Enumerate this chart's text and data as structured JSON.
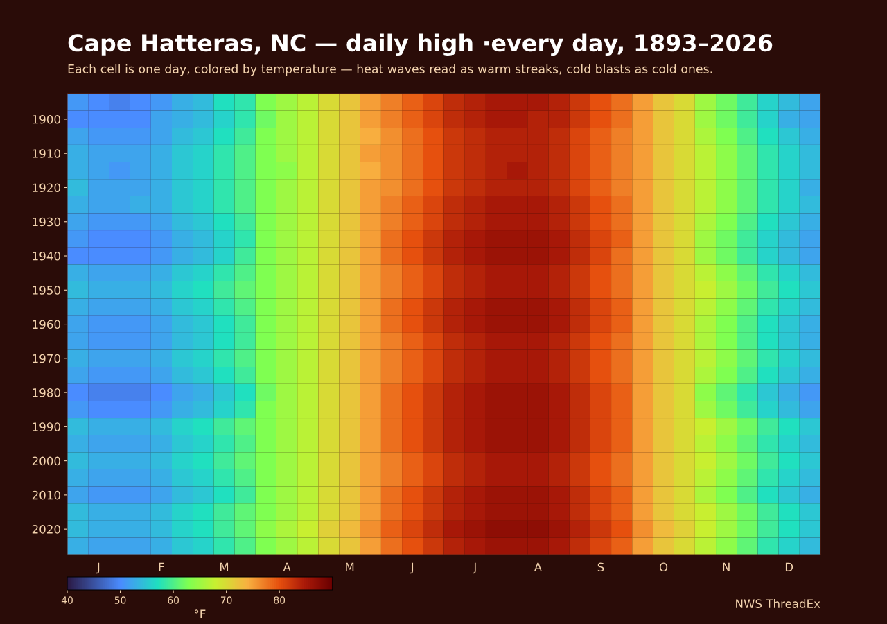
{
  "chart_data": {
    "type": "heatmap",
    "title": "Cape Hatteras, NC — daily high ·every day, 1893–2026",
    "subtitle": "Each cell is one day, colored by temperature — heat waves read as warm streaks, cold blasts as cold ones.",
    "categories": [
      null,
      "J",
      null,
      null,
      "F",
      null,
      null,
      "M",
      null,
      null,
      "A",
      null,
      null,
      "M",
      null,
      null,
      "J",
      null,
      null,
      "J",
      null,
      null,
      "A",
      null,
      null,
      "S",
      null,
      null,
      "O",
      null,
      null,
      "N",
      null,
      null,
      "D",
      null
    ],
    "y_categories": [
      null,
      "1900",
      null,
      "1910",
      null,
      "1920",
      null,
      "1930",
      null,
      "1940",
      null,
      "1950",
      null,
      "1960",
      null,
      "1970",
      null,
      "1980",
      null,
      "1990",
      null,
      "2000",
      null,
      "2010",
      null,
      "2020",
      null
    ],
    "cells": [
      [
        51,
        50,
        49,
        50,
        51,
        53,
        54,
        57,
        58,
        63,
        65,
        67,
        70,
        72,
        75,
        77,
        79,
        81,
        83,
        84,
        85,
        85,
        85,
        84,
        82,
        80,
        78,
        75,
        72,
        70,
        65,
        62,
        59,
        56,
        54,
        52
      ],
      [
        50,
        50,
        50,
        50,
        52,
        53,
        54,
        56,
        58,
        62,
        65,
        67,
        70,
        72,
        75,
        77,
        79,
        81,
        83,
        84,
        85,
        85,
        84,
        84,
        82,
        80,
        78,
        75,
        72,
        70,
        65,
        62,
        59,
        56,
        53,
        52
      ],
      [
        52,
        51,
        51,
        51,
        52,
        54,
        55,
        57,
        59,
        63,
        65,
        67,
        70,
        72,
        74,
        76,
        78,
        80,
        82,
        83,
        84,
        84,
        84,
        83,
        81,
        79,
        77,
        75,
        72,
        70,
        66,
        63,
        60,
        57,
        55,
        53
      ],
      [
        53,
        52,
        52,
        52,
        53,
        55,
        56,
        58,
        60,
        63,
        65,
        67,
        70,
        72,
        75,
        76,
        78,
        80,
        82,
        83,
        84,
        84,
        84,
        83,
        81,
        79,
        77,
        75,
        72,
        70,
        67,
        64,
        61,
        58,
        56,
        54
      ],
      [
        53,
        52,
        51,
        52,
        53,
        55,
        56,
        58,
        60,
        63,
        64,
        67,
        70,
        72,
        74,
        76,
        78,
        80,
        82,
        83,
        84,
        85,
        84,
        83,
        81,
        79,
        77,
        75,
        72,
        70,
        67,
        64,
        61,
        58,
        56,
        54
      ],
      [
        54,
        52,
        52,
        52,
        53,
        55,
        56,
        58,
        60,
        63,
        65,
        67,
        70,
        72,
        75,
        76,
        78,
        80,
        82,
        83,
        84,
        84,
        84,
        83,
        81,
        79,
        77,
        75,
        72,
        70,
        67,
        64,
        61,
        58,
        56,
        53
      ],
      [
        53,
        52,
        52,
        53,
        53,
        55,
        56,
        58,
        60,
        63,
        65,
        67,
        70,
        72,
        75,
        77,
        79,
        81,
        83,
        84,
        85,
        85,
        85,
        84,
        82,
        80,
        78,
        75,
        72,
        70,
        67,
        64,
        61,
        58,
        56,
        54
      ],
      [
        52,
        51,
        51,
        51,
        52,
        54,
        55,
        57,
        59,
        63,
        65,
        67,
        70,
        72,
        75,
        77,
        79,
        81,
        83,
        84,
        85,
        85,
        85,
        84,
        82,
        80,
        78,
        75,
        72,
        70,
        66,
        63,
        60,
        57,
        55,
        53
      ],
      [
        51,
        50,
        50,
        50,
        51,
        53,
        54,
        56,
        58,
        63,
        65,
        67,
        70,
        72,
        75,
        78,
        80,
        82,
        84,
        85,
        86,
        86,
        86,
        85,
        83,
        81,
        79,
        75,
        72,
        70,
        65,
        62,
        59,
        56,
        54,
        52
      ],
      [
        50,
        50,
        50,
        50,
        51,
        53,
        54,
        56,
        59,
        63,
        65,
        67,
        70,
        72,
        75,
        78,
        80,
        82,
        84,
        85,
        86,
        86,
        86,
        85,
        83,
        81,
        78,
        75,
        72,
        70,
        65,
        62,
        59,
        56,
        54,
        52
      ],
      [
        53,
        52,
        52,
        52,
        53,
        55,
        56,
        58,
        60,
        63,
        65,
        67,
        70,
        72,
        75,
        77,
        79,
        81,
        83,
        84,
        85,
        85,
        85,
        84,
        82,
        80,
        78,
        75,
        72,
        70,
        67,
        64,
        61,
        58,
        56,
        54
      ],
      [
        54,
        53,
        53,
        53,
        54,
        56,
        57,
        59,
        61,
        63,
        65,
        67,
        70,
        72,
        75,
        77,
        79,
        81,
        83,
        84,
        85,
        85,
        85,
        84,
        82,
        80,
        78,
        75,
        72,
        70,
        68,
        65,
        62,
        59,
        57,
        55
      ],
      [
        53,
        52,
        52,
        52,
        53,
        55,
        56,
        58,
        60,
        63,
        65,
        67,
        70,
        72,
        75,
        78,
        80,
        82,
        84,
        85,
        86,
        86,
        86,
        85,
        83,
        81,
        79,
        75,
        72,
        70,
        67,
        64,
        61,
        58,
        56,
        54
      ],
      [
        52,
        51,
        51,
        51,
        52,
        54,
        55,
        57,
        59,
        63,
        65,
        67,
        70,
        72,
        75,
        78,
        80,
        82,
        84,
        85,
        86,
        86,
        86,
        85,
        83,
        81,
        79,
        75,
        72,
        70,
        66,
        63,
        60,
        57,
        55,
        53
      ],
      [
        52,
        51,
        51,
        51,
        52,
        54,
        55,
        57,
        59,
        63,
        65,
        67,
        70,
        72,
        75,
        77,
        79,
        81,
        83,
        84,
        85,
        85,
        85,
        84,
        82,
        80,
        78,
        75,
        72,
        70,
        66,
        63,
        60,
        57,
        55,
        53
      ],
      [
        53,
        52,
        52,
        52,
        53,
        55,
        56,
        58,
        60,
        63,
        65,
        67,
        70,
        72,
        75,
        77,
        79,
        81,
        83,
        84,
        85,
        85,
        85,
        84,
        82,
        80,
        78,
        75,
        72,
        70,
        67,
        64,
        61,
        58,
        56,
        54
      ],
      [
        52,
        51,
        51,
        51,
        52,
        54,
        55,
        57,
        59,
        63,
        65,
        67,
        70,
        72,
        75,
        77,
        79,
        81,
        83,
        84,
        85,
        85,
        85,
        84,
        82,
        80,
        78,
        75,
        72,
        70,
        66,
        63,
        60,
        57,
        55,
        53
      ],
      [
        50,
        49,
        49,
        49,
        50,
        52,
        53,
        55,
        57,
        62,
        65,
        67,
        70,
        72,
        75,
        78,
        80,
        82,
        84,
        85,
        86,
        86,
        86,
        85,
        83,
        81,
        79,
        75,
        72,
        70,
        64,
        61,
        58,
        55,
        53,
        51
      ],
      [
        51,
        50,
        50,
        50,
        51,
        53,
        54,
        56,
        58,
        63,
        65,
        67,
        70,
        72,
        75,
        78,
        80,
        82,
        84,
        85,
        86,
        86,
        86,
        85,
        83,
        81,
        79,
        75,
        72,
        70,
        65,
        62,
        59,
        56,
        54,
        52
      ],
      [
        54,
        53,
        53,
        53,
        54,
        56,
        57,
        59,
        61,
        63,
        65,
        67,
        70,
        72,
        75,
        78,
        80,
        82,
        84,
        85,
        86,
        86,
        86,
        85,
        83,
        81,
        79,
        75,
        72,
        70,
        68,
        65,
        62,
        59,
        57,
        55
      ],
      [
        53,
        52,
        52,
        52,
        53,
        55,
        56,
        58,
        60,
        63,
        65,
        67,
        70,
        72,
        75,
        78,
        80,
        82,
        84,
        85,
        86,
        86,
        86,
        85,
        83,
        81,
        79,
        75,
        72,
        70,
        67,
        64,
        61,
        58,
        56,
        54
      ],
      [
        54,
        53,
        53,
        53,
        54,
        56,
        57,
        59,
        61,
        63,
        65,
        67,
        70,
        72,
        75,
        77,
        79,
        81,
        83,
        84,
        85,
        85,
        85,
        84,
        82,
        80,
        78,
        75,
        72,
        70,
        68,
        65,
        62,
        59,
        57,
        55
      ],
      [
        53,
        52,
        52,
        52,
        53,
        55,
        56,
        58,
        60,
        63,
        65,
        67,
        70,
        72,
        75,
        77,
        79,
        81,
        83,
        84,
        85,
        85,
        85,
        84,
        82,
        80,
        78,
        75,
        72,
        70,
        67,
        64,
        61,
        58,
        56,
        54
      ],
      [
        52,
        51,
        51,
        51,
        52,
        54,
        55,
        57,
        59,
        63,
        65,
        67,
        70,
        72,
        75,
        78,
        80,
        82,
        84,
        85,
        86,
        86,
        86,
        85,
        83,
        81,
        79,
        75,
        72,
        70,
        66,
        63,
        60,
        57,
        55,
        53
      ],
      [
        54,
        53,
        53,
        53,
        54,
        56,
        57,
        59,
        61,
        63,
        65,
        67,
        70,
        72,
        75,
        78,
        80,
        82,
        84,
        85,
        86,
        86,
        86,
        85,
        83,
        81,
        79,
        75,
        72,
        70,
        68,
        65,
        62,
        59,
        57,
        55
      ],
      [
        54,
        53,
        53,
        53,
        54,
        56,
        57,
        59,
        61,
        64,
        66,
        68,
        71,
        73,
        76,
        79,
        81,
        83,
        85,
        86,
        87,
        87,
        87,
        86,
        84,
        82,
        80,
        76,
        73,
        71,
        68,
        65,
        62,
        59,
        57,
        55
      ],
      [
        53,
        52,
        52,
        52,
        53,
        55,
        56,
        58,
        60,
        63,
        65,
        67,
        70,
        72,
        75,
        78,
        80,
        82,
        84,
        85,
        86,
        86,
        86,
        85,
        83,
        81,
        79,
        75,
        72,
        70,
        67,
        64,
        61,
        58,
        56,
        54
      ]
    ],
    "clim": [
      40,
      90
    ],
    "cticks": [
      40,
      50,
      60,
      70,
      80
    ],
    "clabel": "°F",
    "annotations": [
      "NWS ThreadEx"
    ]
  }
}
